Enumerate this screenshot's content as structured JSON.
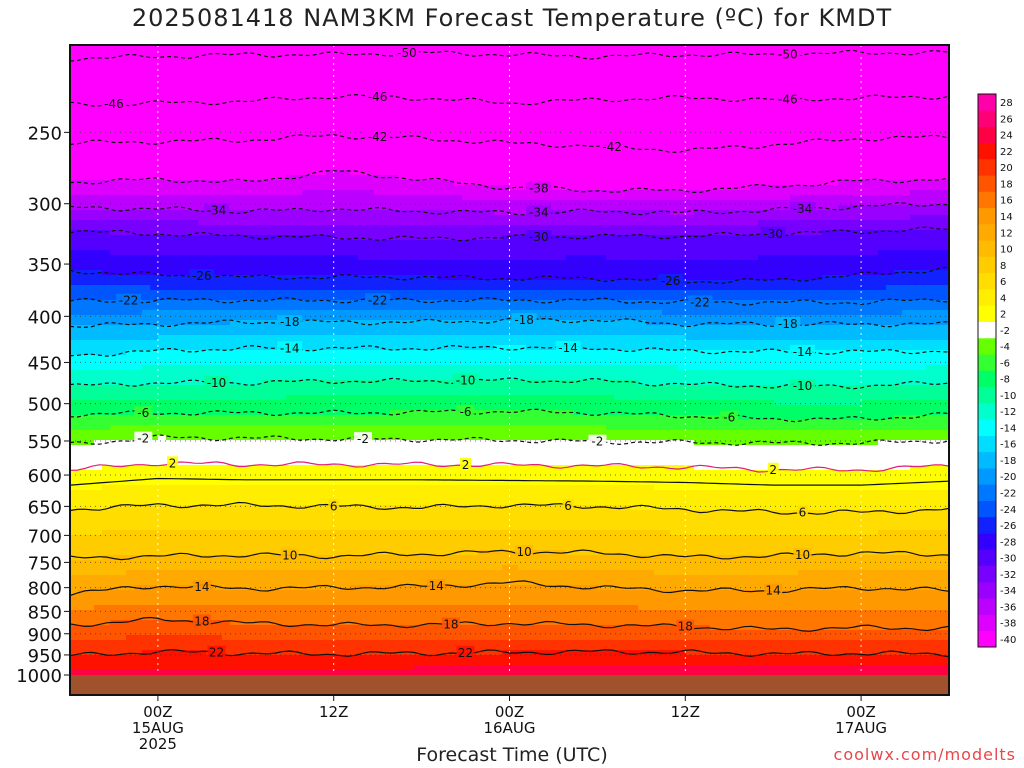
{
  "title": "2025081418 NAM3KM Forecast Temperature (ºC) for KMDT",
  "watermark": "coolwx.com/modelts",
  "colors": {
    "ground": "#a0522d",
    "freezing_line": "#e0207a"
  },
  "chart_data": {
    "type": "heatmap",
    "title": "2025081418 NAM3KM Forecast Temperature (ºC) for KMDT",
    "xlabel": "Forecast Time (UTC)",
    "ylabel": "",
    "y_scale": "log-pressure (hPa), inverted",
    "ylim": [
      1000,
      200
    ],
    "y_ticks": [
      250,
      300,
      350,
      400,
      450,
      500,
      550,
      600,
      650,
      700,
      750,
      800,
      850,
      900,
      950,
      1000
    ],
    "x_range_hours": [
      -6,
      54
    ],
    "x_ticks": [
      {
        "hour": 0,
        "line1": "00Z",
        "line2": "15AUG",
        "line3": "2025"
      },
      {
        "hour": 12,
        "line1": "12Z",
        "line2": "",
        "line3": ""
      },
      {
        "hour": 24,
        "line1": "00Z",
        "line2": "16AUG",
        "line3": ""
      },
      {
        "hour": 36,
        "line1": "12Z",
        "line2": "",
        "line3": ""
      },
      {
        "hour": 48,
        "line1": "00Z",
        "line2": "17AUG",
        "line3": ""
      }
    ],
    "grid": true,
    "legend": "colorbar-right",
    "colorbar": {
      "levels": [
        -40,
        -38,
        -36,
        -34,
        -32,
        -30,
        -28,
        -26,
        -24,
        -22,
        -20,
        -18,
        -16,
        -14,
        -12,
        -10,
        -8,
        -6,
        -4,
        -2,
        2,
        4,
        6,
        8,
        10,
        12,
        14,
        16,
        18,
        20,
        22,
        24,
        26,
        28
      ],
      "labels": [
        "-40",
        "-38",
        "-36",
        "-34",
        "-32",
        "-30",
        "-28",
        "-26",
        "-24",
        "-22",
        "-20",
        "-18",
        "-16",
        "-14",
        "-12",
        "-10",
        "-8",
        "-6",
        "-4",
        "-2",
        "2",
        "4",
        "6",
        "8",
        "10",
        "12",
        "14",
        "16",
        "18",
        "20",
        "22",
        "24",
        "26",
        "28"
      ],
      "colors": [
        "#ff00ff",
        "#dd00ff",
        "#bb00ff",
        "#9900ff",
        "#7700ff",
        "#5500ff",
        "#3300ff",
        "#1122ff",
        "#0055ff",
        "#0077ff",
        "#0099ff",
        "#00bbff",
        "#00ddff",
        "#00ffff",
        "#00ffcc",
        "#00ff99",
        "#00ff66",
        "#33ff33",
        "#66ff00",
        "#ffffff",
        "#ffff00",
        "#ffee00",
        "#ffdd00",
        "#ffcc00",
        "#ffbb00",
        "#ffaa00",
        "#ff9900",
        "#ff7700",
        "#ff5500",
        "#ff3300",
        "#ff1100",
        "#ff0044",
        "#ff0077",
        "#ff00aa"
      ]
    },
    "contours": [
      {
        "level": -50,
        "pressures": [
          207,
          206,
          205,
          205,
          204,
          205,
          206,
          205,
          205,
          204,
          204
        ],
        "labels_at_hours": [
          17,
          43
        ]
      },
      {
        "level": -46,
        "pressures": [
          233,
          232,
          231,
          228,
          229,
          232,
          230,
          229,
          230,
          229,
          228
        ],
        "labels_at_hours": [
          -3,
          15,
          43
        ]
      },
      {
        "level": -42,
        "pressures": [
          257,
          256,
          255,
          252,
          254,
          257,
          259,
          262,
          258,
          254,
          253
        ],
        "labels_at_hours": [
          15,
          31
        ]
      },
      {
        "level": -38,
        "pressures": [
          284,
          282,
          284,
          276,
          282,
          288,
          290,
          290,
          287,
          283,
          282
        ],
        "labels_at_hours": [
          26
        ]
      },
      {
        "level": -34,
        "pressures": [
          303,
          304,
          306,
          304,
          306,
          307,
          306,
          307,
          305,
          302,
          300
        ],
        "labels_at_hours": [
          4,
          26,
          44
        ]
      },
      {
        "level": -30,
        "pressures": [
          322,
          324,
          326,
          327,
          328,
          327,
          326,
          326,
          324,
          322,
          320
        ],
        "labels_at_hours": [
          26,
          42
        ]
      },
      {
        "level": -26,
        "pressures": [
          356,
          360,
          362,
          362,
          362,
          363,
          363,
          366,
          365,
          360,
          354
        ],
        "labels_at_hours": [
          3,
          35
        ]
      },
      {
        "level": -22,
        "pressures": [
          385,
          384,
          384,
          384,
          384,
          384,
          384,
          386,
          386,
          386,
          383
        ],
        "labels_at_hours": [
          -2,
          15,
          37
        ]
      },
      {
        "level": -18,
        "pressures": [
          410,
          408,
          406,
          406,
          406,
          404,
          404,
          408,
          408,
          408,
          408
        ],
        "labels_at_hours": [
          9,
          25,
          43
        ]
      },
      {
        "level": -14,
        "pressures": [
          442,
          437,
          434,
          434,
          434,
          433,
          434,
          437,
          438,
          438,
          437
        ],
        "labels_at_hours": [
          9,
          28,
          44
        ]
      },
      {
        "level": -10,
        "pressures": [
          478,
          474,
          474,
          472,
          472,
          471,
          472,
          476,
          478,
          478,
          474
        ],
        "labels_at_hours": [
          4,
          21,
          44
        ]
      },
      {
        "level": -6,
        "pressures": [
          514,
          512,
          512,
          512,
          511,
          510,
          512,
          516,
          520,
          520,
          514
        ],
        "labels_at_hours": [
          -1,
          21,
          39
        ]
      },
      {
        "level": -2,
        "pressures": [
          555,
          545,
          546,
          547,
          548,
          549,
          551,
          552,
          553,
          553,
          549
        ],
        "labels_at_hours": [
          -1,
          14,
          30
        ]
      },
      {
        "level": 2,
        "pressures": [
          592,
          582,
          584,
          584,
          584,
          585,
          586,
          588,
          592,
          592,
          586
        ],
        "labels_at_hours": [
          1,
          21,
          42
        ]
      },
      {
        "level": 6,
        "pressures": [
          655,
          648,
          648,
          650,
          652,
          648,
          650,
          655,
          660,
          660,
          655
        ],
        "labels_at_hours": [
          12,
          28,
          44
        ]
      },
      {
        "level": 10,
        "pressures": [
          742,
          738,
          736,
          738,
          734,
          730,
          732,
          740,
          738,
          732,
          735
        ],
        "labels_at_hours": [
          9,
          25,
          44
        ]
      },
      {
        "level": 14,
        "pressures": [
          812,
          796,
          802,
          800,
          798,
          790,
          800,
          806,
          806,
          800,
          806
        ],
        "labels_at_hours": [
          3,
          19,
          42
        ]
      },
      {
        "level": 18,
        "pressures": [
          880,
          868,
          876,
          880,
          880,
          876,
          880,
          884,
          890,
          886,
          888
        ],
        "labels_at_hours": [
          3,
          20,
          36
        ]
      },
      {
        "level": 22,
        "pressures": [
          952,
          942,
          946,
          948,
          946,
          944,
          942,
          944,
          948,
          946,
          948
        ],
        "labels_at_hours": [
          4,
          21
        ]
      }
    ],
    "contour_hours": [
      -6,
      0,
      6,
      12,
      18,
      24,
      30,
      36,
      42,
      48,
      54
    ]
  }
}
